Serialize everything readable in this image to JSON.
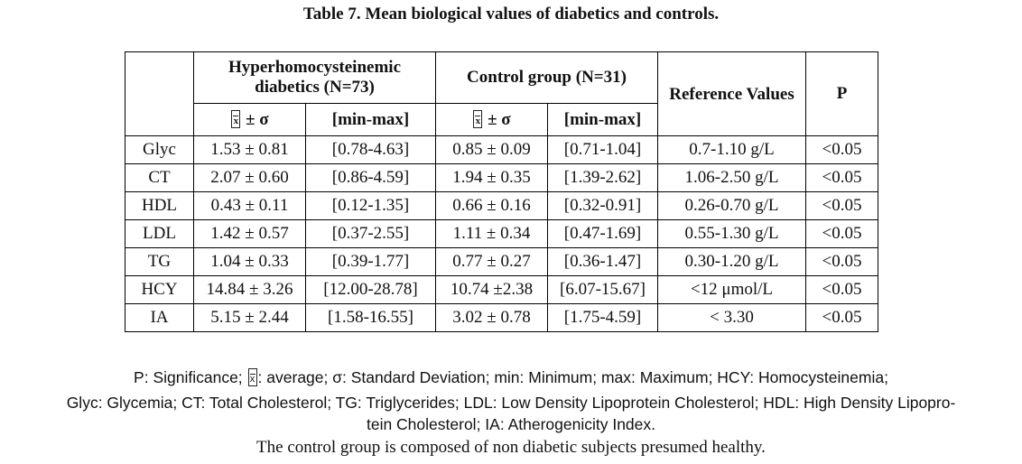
{
  "title": "Table 7. Mean biological values of diabetics and controls.",
  "headers": {
    "group1": "Hyperhomocysteinemic diabetics (N=73)",
    "group2": "Control group (N=31)",
    "reference": "Reference Values",
    "p": "P",
    "mean_sd": "± σ",
    "range": "[min-max]"
  },
  "rows": [
    {
      "param": "Glyc",
      "g1_mean": "1.53 ± 0.81",
      "g1_range": "[0.78-4.63]",
      "g2_mean": "0.85 ± 0.09",
      "g2_range": "[0.71-1.04]",
      "ref": "0.7-1.10 g/L",
      "p": "<0.05"
    },
    {
      "param": "CT",
      "g1_mean": "2.07 ± 0.60",
      "g1_range": "[0.86-4.59]",
      "g2_mean": "1.94 ± 0.35",
      "g2_range": "[1.39-2.62]",
      "ref": "1.06-2.50 g/L",
      "p": "<0.05"
    },
    {
      "param": "HDL",
      "g1_mean": "0.43 ± 0.11",
      "g1_range": "[0.12-1.35]",
      "g2_mean": "0.66 ± 0.16",
      "g2_range": "[0.32-0.91]",
      "ref": "0.26-0.70 g/L",
      "p": "<0.05"
    },
    {
      "param": "LDL",
      "g1_mean": "1.42 ± 0.57",
      "g1_range": "[0.37-2.55]",
      "g2_mean": "1.11 ± 0.34",
      "g2_range": "[0.47-1.69]",
      "ref": "0.55-1.30 g/L",
      "p": "<0.05"
    },
    {
      "param": "TG",
      "g1_mean": "1.04 ± 0.33",
      "g1_range": "[0.39-1.77]",
      "g2_mean": "0.77 ± 0.27",
      "g2_range": "[0.36-1.47]",
      "ref": "0.30-1.20 g/L",
      "p": "<0.05"
    },
    {
      "param": "HCY",
      "g1_mean": "14.84 ± 3.26",
      "g1_range": "[12.00-28.78]",
      "g2_mean": "10.74 ±2.38",
      "g2_range": "[6.07-15.67]",
      "ref": "<12 μmol/L",
      "p": "<0.05"
    },
    {
      "param": "IA",
      "g1_mean": "5.15 ± 2.44",
      "g1_range": "[1.58-16.55]",
      "g2_mean": "3.02 ± 0.78",
      "g2_range": "[1.75-4.59]",
      "ref": "< 3.30",
      "p": "<0.05"
    }
  ],
  "footnotes": {
    "line1_a": "P: Significance;",
    "line1_b": ": average; σ: Standard Deviation; min: Minimum; max: Maximum; HCY: Homocysteinemia;",
    "line2": "Glyc: Glycemia; CT: Total Cholesterol; TG: Triglycerides; LDL: Low Density Lipoprotein Cholesterol; HDL: High Density Lipopro-",
    "line3": "tein Cholesterol; IA: Atherogenicity Index.",
    "line4": "The control group is composed of non diabetic subjects presumed healthy."
  }
}
